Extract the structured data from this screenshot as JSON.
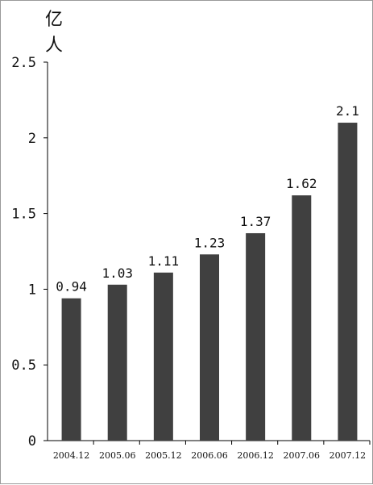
{
  "chart_data": {
    "type": "bar",
    "title": "",
    "ylabel": "亿人",
    "xlabel": "",
    "categories": [
      "2004.12",
      "2005.06",
      "2005.12",
      "2006.06",
      "2006.12",
      "2007.06",
      "2007.12"
    ],
    "values": [
      0.94,
      1.03,
      1.11,
      1.23,
      1.37,
      1.62,
      2.1
    ],
    "value_labels": [
      "0.94",
      "1.03",
      "1.11",
      "1.23",
      "1.37",
      "1.62",
      "2.1"
    ],
    "yticks": [
      "0",
      "0.5",
      "1",
      "1.5",
      "2",
      "2.5"
    ],
    "ylim": [
      0,
      2.5
    ],
    "grid": false,
    "bar_color": "#404040"
  }
}
